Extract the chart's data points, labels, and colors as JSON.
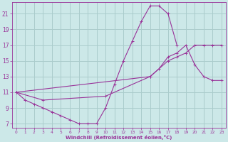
{
  "bg_color": "#cce8e8",
  "grid_color": "#aacccc",
  "line_color": "#993399",
  "xlabel": "Windchill (Refroidissement éolien,°C)",
  "ylim": [
    6.5,
    22.5
  ],
  "xlim": [
    -0.5,
    23.5
  ],
  "yticks": [
    7,
    9,
    11,
    13,
    15,
    17,
    19,
    21
  ],
  "xticks": [
    0,
    1,
    2,
    3,
    4,
    5,
    6,
    7,
    8,
    9,
    10,
    11,
    12,
    13,
    14,
    15,
    16,
    17,
    18,
    19,
    20,
    21,
    22,
    23
  ],
  "curve1_x": [
    0,
    1,
    2,
    3,
    4,
    5,
    6,
    7,
    8,
    9,
    10,
    11,
    12,
    13,
    14,
    15,
    16,
    17,
    18
  ],
  "curve1_y": [
    11,
    10,
    9.5,
    9,
    8.5,
    8,
    7.5,
    7,
    7,
    7,
    9,
    12,
    15,
    17.5,
    20,
    22,
    22,
    21,
    17
  ],
  "curve2_x": [
    0,
    15,
    16,
    17,
    18,
    19,
    20,
    21,
    22,
    23
  ],
  "curve2_y": [
    11,
    13,
    14,
    15.5,
    16,
    17,
    14.5,
    13,
    12.5,
    12.5
  ],
  "curve3_x": [
    0,
    3,
    10,
    15,
    17,
    18,
    19,
    20,
    21,
    22,
    23
  ],
  "curve3_y": [
    11,
    10,
    10.5,
    13,
    15,
    15.5,
    16,
    17,
    17,
    17,
    17
  ]
}
